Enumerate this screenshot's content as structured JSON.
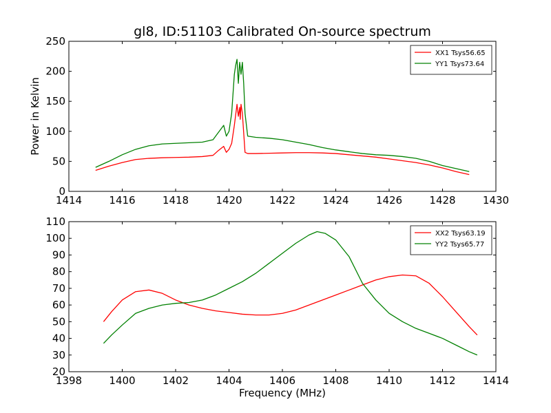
{
  "figure_title": "gl8, ID:51103 Calibrated On-source spectrum",
  "chart_data": [
    {
      "type": "line",
      "title": "gl8, ID:51103 Calibrated On-source spectrum",
      "xlabel": "",
      "ylabel": "Power in Kelvin",
      "xlim": [
        1414,
        1430
      ],
      "ylim": [
        0,
        250
      ],
      "xticks": [
        1414,
        1416,
        1418,
        1420,
        1422,
        1424,
        1426,
        1428,
        1430
      ],
      "yticks": [
        0,
        50,
        100,
        150,
        200,
        250
      ],
      "legend_position": "top-right",
      "grid": false,
      "series": [
        {
          "name": "XX1 Tsys56.65",
          "color": "#ff0000",
          "x": [
            1415.0,
            1415.5,
            1416.0,
            1416.5,
            1417.0,
            1417.5,
            1418.0,
            1418.5,
            1419.0,
            1419.4,
            1419.6,
            1419.8,
            1419.9,
            1420.0,
            1420.1,
            1420.2,
            1420.3,
            1420.35,
            1420.4,
            1420.42,
            1420.45,
            1420.5,
            1420.6,
            1420.7,
            1421.0,
            1421.5,
            1422.0,
            1422.5,
            1423.0,
            1423.5,
            1424.0,
            1424.5,
            1425.0,
            1425.5,
            1426.0,
            1426.5,
            1427.0,
            1427.5,
            1428.0,
            1428.5,
            1429.0
          ],
          "y": [
            35,
            42,
            48,
            53,
            55,
            56,
            56.5,
            57,
            58,
            60,
            68,
            75,
            65,
            70,
            80,
            110,
            145,
            125,
            140,
            120,
            145,
            130,
            65,
            63,
            63,
            63.5,
            64,
            64.5,
            64.5,
            64,
            63,
            61,
            59,
            57,
            54,
            51,
            48,
            44,
            39,
            33,
            28
          ]
        },
        {
          "name": "YY1 Tsys73.64",
          "color": "#008000",
          "x": [
            1415.0,
            1415.5,
            1416.0,
            1416.5,
            1417.0,
            1417.5,
            1418.0,
            1418.5,
            1419.0,
            1419.4,
            1419.6,
            1419.8,
            1419.9,
            1420.0,
            1420.1,
            1420.2,
            1420.25,
            1420.3,
            1420.35,
            1420.4,
            1420.45,
            1420.5,
            1420.55,
            1420.6,
            1420.7,
            1421.0,
            1421.5,
            1422.0,
            1422.5,
            1423.0,
            1423.5,
            1424.0,
            1424.5,
            1425.0,
            1425.5,
            1426.0,
            1426.5,
            1427.0,
            1427.5,
            1428.0,
            1428.5,
            1429.0
          ],
          "y": [
            40,
            50,
            61,
            70,
            76,
            79,
            80,
            81,
            82,
            86,
            98,
            110,
            92,
            100,
            130,
            195,
            210,
            220,
            180,
            215,
            195,
            215,
            180,
            130,
            92,
            90,
            88.5,
            86,
            82,
            78,
            73,
            69,
            66,
            63,
            61,
            60,
            58,
            55,
            50,
            43,
            38,
            33
          ]
        }
      ]
    },
    {
      "type": "line",
      "title": "",
      "xlabel": "Frequency (MHz)",
      "ylabel": "",
      "xlim": [
        1398,
        1414
      ],
      "ylim": [
        20,
        110
      ],
      "xticks": [
        1398,
        1400,
        1402,
        1404,
        1406,
        1408,
        1410,
        1412,
        1414
      ],
      "yticks": [
        20,
        30,
        40,
        50,
        60,
        70,
        80,
        90,
        100,
        110
      ],
      "legend_position": "top-right",
      "grid": false,
      "series": [
        {
          "name": "XX2 Tsys63.19",
          "color": "#ff0000",
          "x": [
            1399.3,
            1399.6,
            1400.0,
            1400.5,
            1401.0,
            1401.5,
            1402.0,
            1402.5,
            1403.0,
            1403.5,
            1404.0,
            1404.5,
            1405.0,
            1405.5,
            1406.0,
            1406.5,
            1407.0,
            1407.5,
            1408.0,
            1408.5,
            1409.0,
            1409.5,
            1410.0,
            1410.5,
            1411.0,
            1411.5,
            1412.0,
            1412.5,
            1413.0,
            1413.3
          ],
          "y": [
            50,
            56,
            63,
            68,
            69,
            67,
            63,
            60,
            58,
            56.5,
            55.5,
            54.5,
            54,
            54,
            55,
            57,
            60,
            63,
            66,
            69,
            72,
            75,
            77,
            78,
            77.5,
            73,
            65,
            56,
            47,
            42
          ]
        },
        {
          "name": "YY2 Tsys65.77",
          "color": "#008000",
          "x": [
            1399.3,
            1399.6,
            1400.0,
            1400.5,
            1401.0,
            1401.5,
            1402.0,
            1402.5,
            1403.0,
            1403.5,
            1404.0,
            1404.5,
            1405.0,
            1405.5,
            1406.0,
            1406.5,
            1407.0,
            1407.3,
            1407.6,
            1408.0,
            1408.5,
            1409.0,
            1409.5,
            1410.0,
            1410.5,
            1411.0,
            1411.5,
            1412.0,
            1412.5,
            1413.0,
            1413.3
          ],
          "y": [
            37,
            42,
            48,
            55,
            58,
            60,
            61,
            61.5,
            63,
            66,
            70,
            74,
            79,
            85,
            91,
            97,
            102,
            104,
            103,
            99,
            89,
            73,
            63,
            55,
            50,
            46,
            43,
            40,
            36,
            32,
            30
          ]
        }
      ]
    }
  ]
}
